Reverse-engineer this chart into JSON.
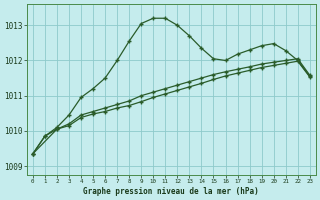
{
  "title": "Graphe pression niveau de la mer (hPa)",
  "background_color": "#c5eced",
  "grid_color": "#8ecacb",
  "line_color": "#2a5c2a",
  "ylim": [
    1008.75,
    1013.6
  ],
  "yticks": [
    1009,
    1010,
    1011,
    1012,
    1013
  ],
  "xlim": [
    -0.5,
    23.5
  ],
  "xticks": [
    0,
    1,
    2,
    3,
    4,
    5,
    6,
    7,
    8,
    9,
    10,
    11,
    12,
    13,
    14,
    15,
    16,
    17,
    18,
    19,
    20,
    21,
    22,
    23
  ],
  "line_upper_x": [
    0,
    1,
    2,
    3,
    4,
    5,
    6,
    7,
    8,
    9,
    10,
    11,
    12,
    13,
    14,
    15,
    16,
    17,
    18,
    19,
    20,
    21,
    22,
    23
  ],
  "line_upper_y": [
    1009.35,
    1009.85,
    1010.1,
    1010.45,
    1010.95,
    1011.2,
    1011.5,
    1012.0,
    1012.55,
    1013.05,
    1013.2,
    1013.2,
    1013.0,
    1012.7,
    1012.35,
    1012.05,
    1012.0,
    1012.18,
    1012.3,
    1012.42,
    1012.48,
    1012.28,
    1012.0,
    1011.55
  ],
  "line_mid_x": [
    0,
    1,
    2,
    3,
    4,
    5,
    6,
    7,
    8,
    9,
    10,
    11,
    12,
    13,
    14,
    15,
    16,
    17,
    18,
    19,
    20,
    21,
    22,
    23
  ],
  "line_mid_y": [
    1009.35,
    1009.85,
    1010.05,
    1010.2,
    1010.45,
    1010.55,
    1010.65,
    1010.75,
    1010.85,
    1011.0,
    1011.1,
    1011.2,
    1011.3,
    1011.4,
    1011.5,
    1011.6,
    1011.68,
    1011.75,
    1011.82,
    1011.9,
    1011.95,
    1012.0,
    1012.05,
    1011.58
  ],
  "line_low_x": [
    0,
    2,
    3,
    4,
    5,
    6,
    7,
    8,
    9,
    10,
    11,
    12,
    13,
    14,
    15,
    16,
    17,
    18,
    19,
    20,
    21,
    22,
    23
  ],
  "line_low_y": [
    1009.35,
    1010.05,
    1010.15,
    1010.38,
    1010.48,
    1010.55,
    1010.65,
    1010.72,
    1010.83,
    1010.95,
    1011.05,
    1011.15,
    1011.25,
    1011.35,
    1011.46,
    1011.56,
    1011.64,
    1011.72,
    1011.8,
    1011.86,
    1011.92,
    1011.98,
    1011.53
  ]
}
